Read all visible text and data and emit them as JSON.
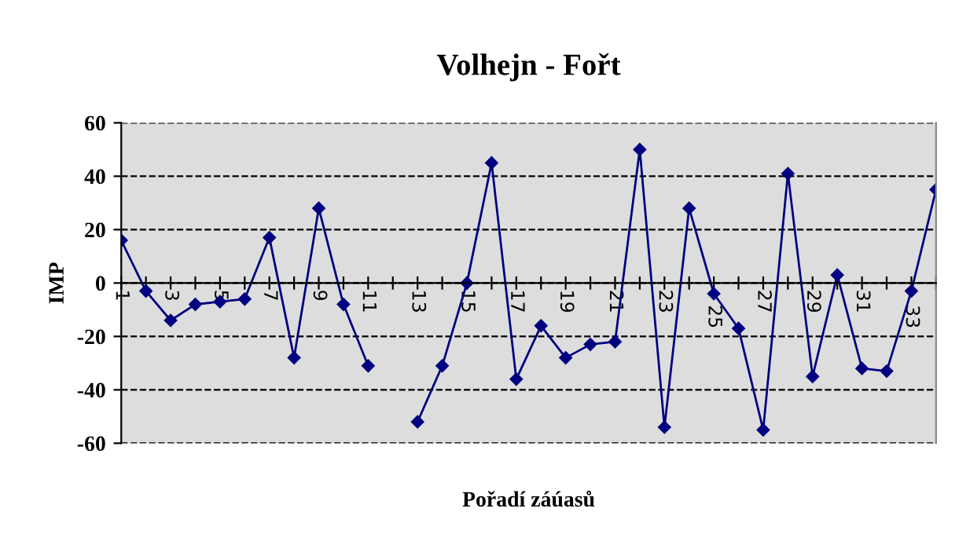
{
  "chart_data": {
    "type": "line",
    "title": "Volhejn - Fořt",
    "xlabel": "Pořadí záúasů",
    "ylabel": "IMP",
    "categories": [
      "1",
      null,
      "3",
      null,
      "5",
      null,
      "7",
      null,
      "9",
      null,
      "11",
      null,
      "13",
      null,
      "15",
      null,
      "17",
      null,
      "19",
      null,
      "21",
      null,
      "23",
      null,
      "25",
      null,
      "27",
      null,
      "29",
      null,
      "31",
      null,
      "33",
      null
    ],
    "series": [
      {
        "color": "#000080",
        "values": [
          16,
          -3,
          -14,
          -8,
          -7,
          -6,
          17,
          -28,
          28,
          -8,
          -31,
          null,
          -52,
          -31,
          0,
          45,
          -36,
          -16,
          -28,
          -23,
          -22,
          50,
          -54,
          28,
          -4,
          -17,
          -55,
          41,
          -35,
          3,
          -32,
          -33,
          -3,
          35
        ]
      }
    ],
    "ylim": [
      -60,
      60
    ],
    "yticks": [
      -60,
      -40,
      -20,
      0,
      20,
      40,
      60
    ],
    "grid": "y",
    "marker": "diamond",
    "line_style": "solid",
    "legend": false
  }
}
